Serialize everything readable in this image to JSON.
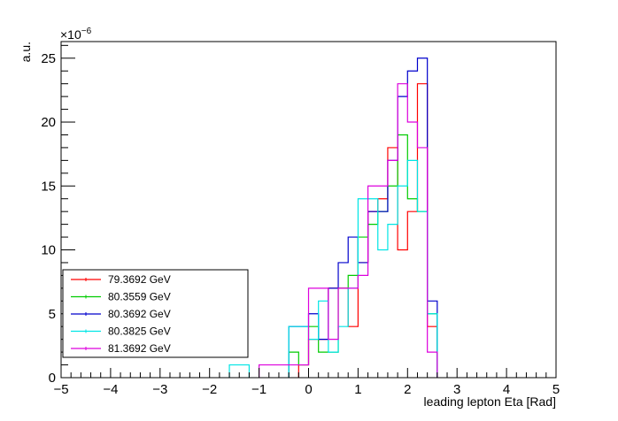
{
  "chart_data": {
    "type": "line",
    "step": true,
    "title": "",
    "xlabel": "leading lepton Eta [Rad]",
    "ylabel": "a.u.",
    "y_exponent_label": "×10",
    "y_exponent_power": "−6",
    "xlim": [
      -5,
      5
    ],
    "ylim": [
      0,
      26.3
    ],
    "bin_width": 0.2,
    "x_ticks": [
      -5,
      -4,
      -3,
      -2,
      -1,
      0,
      1,
      2,
      3,
      4,
      5
    ],
    "x_tick_labels": [
      "−5",
      "−4",
      "−3",
      "−2",
      "−1",
      "0",
      "1",
      "2",
      "3",
      "4",
      "5"
    ],
    "y_ticks": [
      0,
      5,
      10,
      15,
      20,
      25
    ],
    "y_tick_labels": [
      "0",
      "5",
      "10",
      "15",
      "20",
      "25"
    ],
    "grid": false,
    "legend_position": "bottom-left",
    "series": [
      {
        "name": "79.3692 GeV",
        "color": "#ff0000",
        "x": [
          -0.2,
          0.0,
          0.2,
          0.4,
          0.6,
          0.8,
          1.0,
          1.2,
          1.4,
          1.6,
          1.8,
          2.0,
          2.2,
          2.4
        ],
        "values": [
          1,
          3,
          3,
          7,
          7,
          4,
          9,
          13,
          14,
          18,
          10,
          13,
          23,
          4
        ]
      },
      {
        "name": "80.3559 GeV",
        "color": "#00cc00",
        "x": [
          -0.4,
          -0.2,
          0.0,
          0.2,
          0.4,
          0.6,
          0.8,
          1.0,
          1.2,
          1.4,
          1.6,
          1.8,
          2.0,
          2.2,
          2.4
        ],
        "values": [
          2,
          1,
          4,
          2,
          2,
          7,
          8,
          11,
          12,
          13,
          15,
          19,
          14,
          13,
          5
        ]
      },
      {
        "name": "80.3692 GeV",
        "color": "#0000cc",
        "x": [
          -0.4,
          -0.2,
          0.0,
          0.2,
          0.4,
          0.6,
          0.8,
          1.0,
          1.2,
          1.4,
          1.6,
          1.8,
          2.0,
          2.2,
          2.4
        ],
        "values": [
          4,
          4,
          5,
          3,
          7,
          9,
          11,
          9,
          13,
          13,
          17,
          22,
          24,
          25,
          6
        ]
      },
      {
        "name": "80.3825 GeV",
        "color": "#00e5e5",
        "x": [
          -1.6,
          -1.4,
          -0.4,
          -0.2,
          0.0,
          0.2,
          0.4,
          0.6,
          0.8,
          1.0,
          1.2,
          1.4,
          1.6,
          1.8,
          2.0,
          2.2,
          2.4
        ],
        "values": [
          1,
          1,
          4,
          4,
          3,
          6,
          2,
          4,
          7,
          14,
          14,
          10,
          12,
          15,
          17,
          13,
          5
        ]
      },
      {
        "name": "81.3692 GeV",
        "color": "#dd00dd",
        "x": [
          -1.0,
          -0.8,
          -0.6,
          -0.4,
          -0.2,
          0.0,
          0.2,
          0.4,
          0.6,
          0.8,
          1.0,
          1.2,
          1.4,
          1.6,
          1.8,
          2.0,
          2.2,
          2.4
        ],
        "values": [
          1,
          1,
          1,
          1,
          1,
          7,
          7,
          3,
          7,
          7,
          8,
          15,
          15,
          17,
          23,
          20,
          18,
          2
        ]
      }
    ]
  }
}
